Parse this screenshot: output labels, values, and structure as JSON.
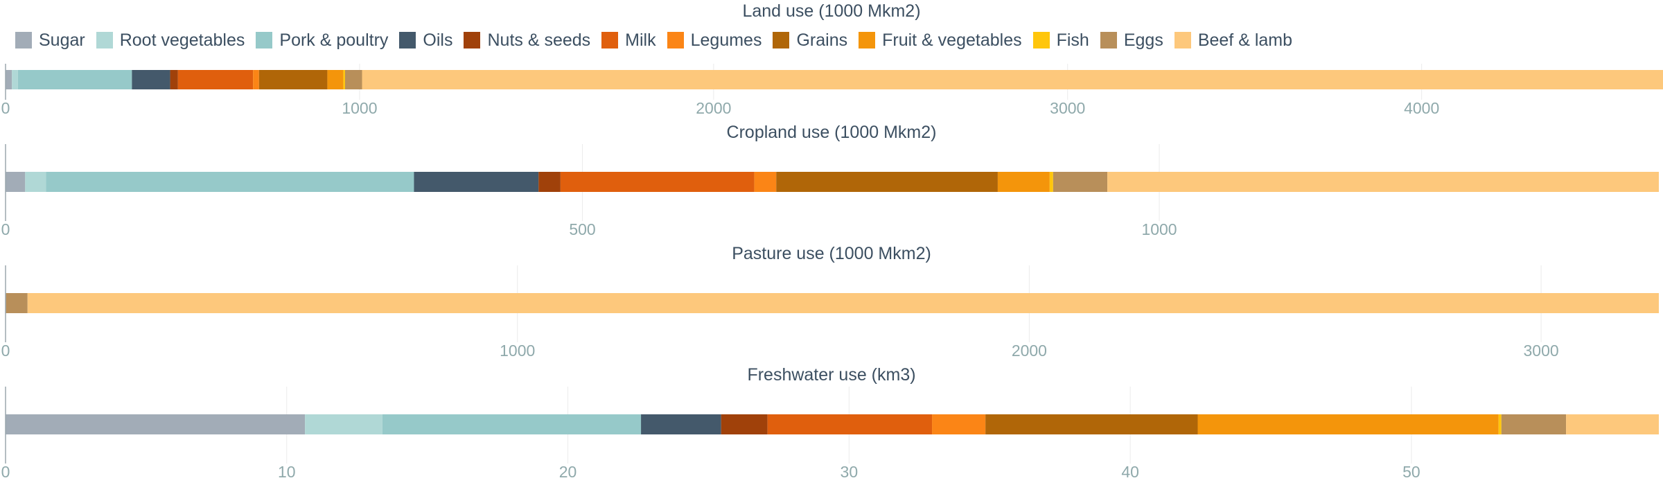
{
  "legend": [
    {
      "name": "Sugar",
      "color": "#a2acb7"
    },
    {
      "name": "Root vegetables",
      "color": "#b0d8d6"
    },
    {
      "name": "Pork & poultry",
      "color": "#96c9c9"
    },
    {
      "name": "Oils",
      "color": "#44596b"
    },
    {
      "name": "Nuts & seeds",
      "color": "#a0410a"
    },
    {
      "name": "Milk",
      "color": "#e05f0d"
    },
    {
      "name": "Legumes",
      "color": "#fb8516"
    },
    {
      "name": "Grains",
      "color": "#b06608"
    },
    {
      "name": "Fruit & vegetables",
      "color": "#f4950b"
    },
    {
      "name": "Fish",
      "color": "#ffc60c"
    },
    {
      "name": "Eggs",
      "color": "#b88f5a"
    },
    {
      "name": "Beef & lamb",
      "color": "#fdc87c"
    }
  ],
  "chart_data": [
    {
      "type": "bar",
      "orientation": "horizontal-stacked",
      "title": "Land use (1000 Mkm2)",
      "categories": [
        "Sugar",
        "Root vegetables",
        "Pork & poultry",
        "Oils",
        "Nuts & seeds",
        "Milk",
        "Legumes",
        "Grains",
        "Fruit & vegetables",
        "Fish",
        "Eggs",
        "Beef & lamb"
      ],
      "values": [
        18,
        17,
        322,
        108,
        22,
        212,
        17,
        193,
        45,
        5,
        48,
        3683
      ],
      "xlim": [
        0,
        4670
      ],
      "ticks": [
        0,
        1000,
        2000,
        3000,
        4000
      ],
      "grid": true
    },
    {
      "type": "bar",
      "orientation": "horizontal-stacked",
      "title": "Cropland use (1000 Mkm2)",
      "categories": [
        "Sugar",
        "Root vegetables",
        "Pork & poultry",
        "Oils",
        "Nuts & seeds",
        "Milk",
        "Legumes",
        "Grains",
        "Fruit & vegetables",
        "Fish",
        "Eggs",
        "Beef & lamb"
      ],
      "values": [
        17,
        18,
        319,
        108,
        19,
        168,
        19,
        192,
        45,
        3,
        47,
        478
      ],
      "xlim": [
        0,
        1433
      ],
      "ticks": [
        0,
        500,
        1000
      ],
      "grid": true
    },
    {
      "type": "bar",
      "orientation": "horizontal-stacked",
      "title": "Pasture use (1000 Mkm2)",
      "categories": [
        "Eggs",
        "Beef & lamb"
      ],
      "values": [
        43,
        3187
      ],
      "xlim": [
        0,
        3230
      ],
      "ticks": [
        0,
        1000,
        2000,
        3000
      ],
      "grid": true
    },
    {
      "type": "bar",
      "orientation": "horizontal-stacked",
      "title": "Freshwater use (km3)",
      "categories": [
        "Sugar",
        "Root vegetables",
        "Pork & poultry",
        "Oils",
        "Nuts & seeds",
        "Milk",
        "Legumes",
        "Grains",
        "Fruit & vegetables",
        "Fish",
        "Eggs",
        "Beef & lamb"
      ],
      "values": [
        10.65,
        2.75,
        9.2,
        2.85,
        1.65,
        5.85,
        1.9,
        7.55,
        10.7,
        0.1,
        2.3,
        3.3
      ],
      "xlim": [
        0,
        58.8
      ],
      "ticks": [
        0,
        10,
        20,
        30,
        40,
        50
      ],
      "grid": true
    }
  ]
}
